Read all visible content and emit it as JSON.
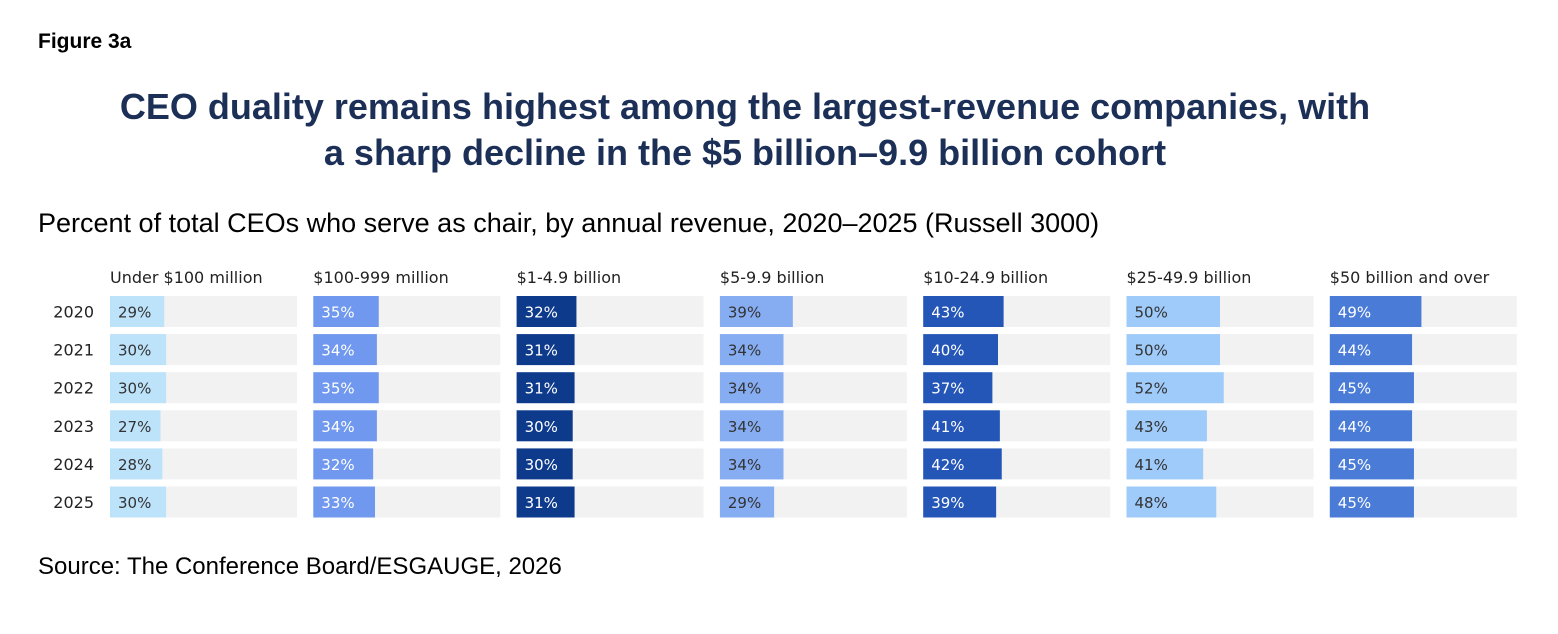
{
  "figure_label": "Figure 3a",
  "title_lines": [
    "CEO duality remains highest among the largest-revenue companies, with",
    "a sharp decline in the $5 billion–9.9 billion cohort"
  ],
  "subtitle": "Percent of total CEOs who serve as chair, by annual revenue, 2020–2025 (Russell 3000)",
  "source": "Source: The Conference Board/ESGAUGE, 2026",
  "chart_data": {
    "type": "bar",
    "orientation": "horizontal",
    "layout": "small-multiples",
    "unit": "%",
    "xlim": [
      0,
      100
    ],
    "grid": false,
    "categories": [
      "2020",
      "2021",
      "2022",
      "2023",
      "2024",
      "2025"
    ],
    "series": [
      {
        "name": "Under $100 million",
        "values": [
          29,
          30,
          30,
          27,
          28,
          30
        ],
        "color": "#bde3fb",
        "label_color": "#333333"
      },
      {
        "name": "$100-999 million",
        "values": [
          35,
          34,
          35,
          34,
          32,
          33
        ],
        "color": "#6f98ee",
        "label_color": "#ffffff"
      },
      {
        "name": "$1-4.9 billion",
        "values": [
          32,
          31,
          31,
          30,
          30,
          31
        ],
        "color": "#0e3a8c",
        "label_color": "#ffffff"
      },
      {
        "name": "$5-9.9 billion",
        "values": [
          39,
          34,
          34,
          34,
          34,
          29
        ],
        "color": "#86acf2",
        "label_color": "#333333"
      },
      {
        "name": "$10-24.9 billion",
        "values": [
          43,
          40,
          37,
          41,
          42,
          39
        ],
        "color": "#2456b8",
        "label_color": "#ffffff"
      },
      {
        "name": "$25-49.9 billion",
        "values": [
          50,
          50,
          52,
          43,
          41,
          48
        ],
        "color": "#9fcbfa",
        "label_color": "#333333"
      },
      {
        "name": "$50 billion and over",
        "values": [
          49,
          44,
          45,
          44,
          45,
          45
        ],
        "color": "#4a7bd6",
        "label_color": "#ffffff"
      }
    ],
    "background_color": "#f2f2f2"
  }
}
